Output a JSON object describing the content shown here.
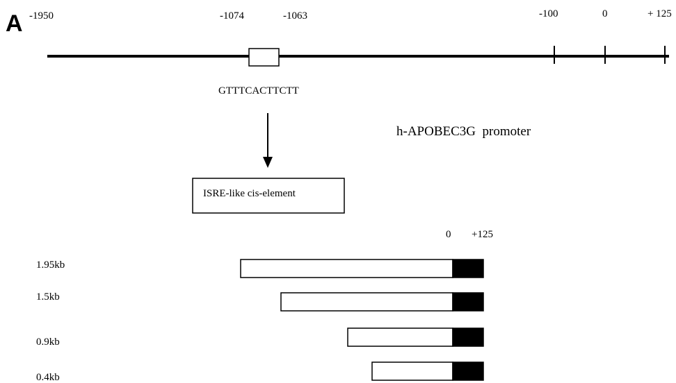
{
  "panel_label": "A",
  "promoter_map": {
    "position_labels": [
      "-1950",
      "-1074",
      "-1063",
      "-100",
      "0",
      "+ 125"
    ],
    "element_sequence": "GTTTCACTTCTT",
    "element_name": "ISRE-like cis-element",
    "promoter_name": "h-APOBEC3G  promoter"
  },
  "constructs": {
    "header_zero": "0",
    "header_end": "+125",
    "items": [
      {
        "label": "1.95kb"
      },
      {
        "label": "1.5kb"
      },
      {
        "label": "0.9kb"
      },
      {
        "label": "0.4kb"
      }
    ]
  },
  "colors": {
    "line": "#000000",
    "box_fill": "#ffffff",
    "transcribed_fill": "#000000",
    "text": "#000000"
  }
}
